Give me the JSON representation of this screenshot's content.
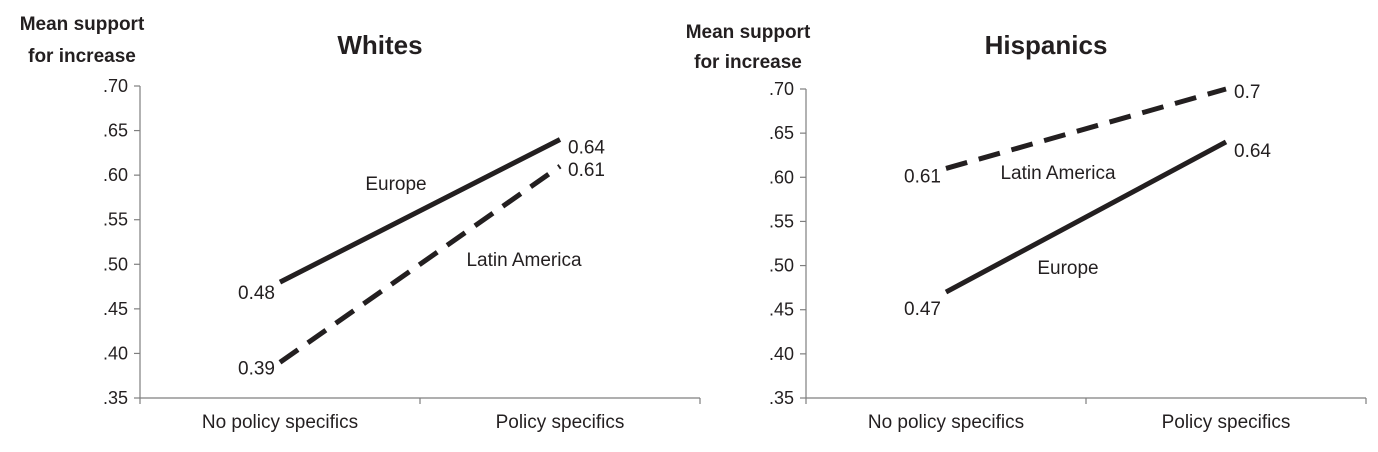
{
  "chart_data": [
    {
      "type": "line",
      "title": "Whites",
      "ylabel": "Mean support for increase",
      "ylabel_lines": [
        "Mean support",
        "for increase"
      ],
      "xlabel": "",
      "categories": [
        "No policy specifics",
        "Policy specifics"
      ],
      "ylim": [
        0.35,
        0.7
      ],
      "yticks": [
        0.35,
        0.4,
        0.45,
        0.5,
        0.55,
        0.6,
        0.65,
        0.7
      ],
      "ytick_labels": [
        ".35",
        ".40",
        ".45",
        ".50",
        ".55",
        ".60",
        ".65",
        ".70"
      ],
      "grid": false,
      "series": [
        {
          "name": "Europe",
          "style": "solid",
          "values": [
            0.48,
            0.64
          ],
          "labels": [
            "0.48",
            "0.64"
          ]
        },
        {
          "name": "Latin America",
          "style": "dashed",
          "values": [
            0.39,
            0.61
          ],
          "labels": [
            "0.39",
            "0.61"
          ]
        }
      ]
    },
    {
      "type": "line",
      "title": "Hispanics",
      "ylabel": "Mean support for increase",
      "ylabel_lines": [
        "Mean support",
        "for increase"
      ],
      "xlabel": "",
      "categories": [
        "No policy specifics",
        "Policy specifics"
      ],
      "ylim": [
        0.35,
        0.7
      ],
      "yticks": [
        0.35,
        0.4,
        0.45,
        0.5,
        0.55,
        0.6,
        0.65,
        0.7
      ],
      "ytick_labels": [
        ".35",
        ".40",
        ".45",
        ".50",
        ".55",
        ".60",
        ".65",
        ".70"
      ],
      "grid": false,
      "series": [
        {
          "name": "Latin America",
          "style": "dashed",
          "values": [
            0.61,
            0.7
          ],
          "labels": [
            "0.61",
            "0.7"
          ]
        },
        {
          "name": "Europe",
          "style": "solid",
          "values": [
            0.47,
            0.64
          ],
          "labels": [
            "0.47",
            "0.64"
          ]
        }
      ]
    }
  ],
  "colors": {
    "line": "#231f20",
    "axis": "#7f7f7f",
    "text": "#231f20"
  }
}
